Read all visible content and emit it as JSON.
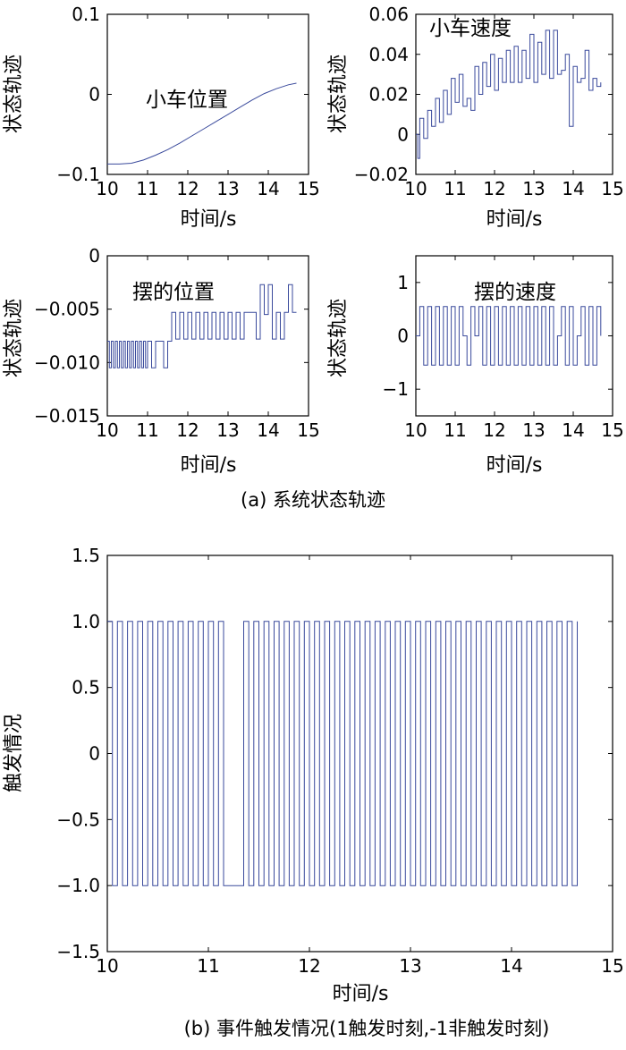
{
  "figure": {
    "caption_a": "(a) 系统状态轨迹",
    "caption_b": "(b) 事件触发情况(1触发时刻,-1非触发时刻)"
  },
  "chart_data": [
    {
      "id": "p1",
      "type": "line",
      "annotation": "小车位置",
      "xlabel": "时间/s",
      "ylabel": "状态轨迹",
      "xlim": [
        10,
        15
      ],
      "ylim": [
        -0.1,
        0.1
      ],
      "xticks": [
        10,
        11,
        12,
        13,
        14,
        15
      ],
      "yticks": [
        -0.1,
        0,
        0.1
      ],
      "ytick_labels": [
        "−0.1",
        "0",
        "0.1"
      ],
      "series": [
        {
          "x": [
            10.0,
            10.3,
            10.6,
            10.9,
            11.2,
            11.5,
            11.8,
            12.1,
            12.4,
            12.7,
            13.0,
            13.3,
            13.6,
            13.9,
            14.2,
            14.5,
            14.7
          ],
          "y": [
            -0.087,
            -0.087,
            -0.086,
            -0.082,
            -0.076,
            -0.069,
            -0.061,
            -0.052,
            -0.043,
            -0.034,
            -0.025,
            -0.016,
            -0.007,
            0.001,
            0.007,
            0.012,
            0.014
          ]
        }
      ]
    },
    {
      "id": "p2",
      "type": "line",
      "annotation": "小车速度",
      "xlabel": "时间/s",
      "ylabel": "状态轨迹",
      "xlim": [
        10,
        15
      ],
      "ylim": [
        -0.02,
        0.06
      ],
      "xticks": [
        10,
        11,
        12,
        13,
        14,
        15
      ],
      "yticks": [
        -0.02,
        0,
        0.02,
        0.04,
        0.06
      ],
      "ytick_labels": [
        "−0.02",
        "0",
        "0.02",
        "0.04",
        "0.06"
      ],
      "series": [
        {
          "x": [
            10.0,
            10.05,
            10.1,
            10.2,
            10.3,
            10.4,
            10.5,
            10.6,
            10.7,
            10.8,
            10.9,
            11.0,
            11.1,
            11.2,
            11.3,
            11.4,
            11.5,
            11.6,
            11.7,
            11.8,
            11.9,
            12.0,
            12.1,
            12.2,
            12.3,
            12.4,
            12.5,
            12.6,
            12.7,
            12.8,
            12.9,
            13.0,
            13.1,
            13.2,
            13.3,
            13.4,
            13.5,
            13.6,
            13.7,
            13.8,
            13.9,
            14.0,
            14.1,
            14.2,
            14.3,
            14.4,
            14.5,
            14.6,
            14.7
          ],
          "y": [
            0.0,
            -0.012,
            0.008,
            -0.002,
            0.012,
            0.004,
            0.018,
            0.006,
            0.022,
            0.01,
            0.028,
            0.016,
            0.03,
            0.014,
            0.018,
            0.012,
            0.034,
            0.02,
            0.036,
            0.024,
            0.04,
            0.022,
            0.038,
            0.026,
            0.042,
            0.026,
            0.044,
            0.026,
            0.042,
            0.028,
            0.05,
            0.026,
            0.046,
            0.03,
            0.052,
            0.028,
            0.052,
            0.03,
            0.032,
            0.04,
            0.004,
            0.034,
            0.026,
            0.028,
            0.042,
            0.022,
            0.028,
            0.024,
            0.026
          ]
        }
      ]
    },
    {
      "id": "p3",
      "type": "line",
      "annotation": "摆的位置",
      "xlabel": "时间/s",
      "ylabel": "状态轨迹",
      "xlim": [
        10,
        15
      ],
      "ylim": [
        -0.015,
        0
      ],
      "xticks": [
        10,
        11,
        12,
        13,
        14,
        15
      ],
      "yticks": [
        -0.015,
        -0.01,
        -0.005,
        0
      ],
      "ytick_labels": [
        "−0.015",
        "−0.010",
        "−0.005",
        "0"
      ],
      "series": [
        {
          "x": [
            10.0,
            10.05,
            10.1,
            10.15,
            10.2,
            10.25,
            10.3,
            10.35,
            10.4,
            10.45,
            10.5,
            10.55,
            10.6,
            10.65,
            10.7,
            10.75,
            10.8,
            10.85,
            10.9,
            10.95,
            11.0,
            11.1,
            11.2,
            11.3,
            11.4,
            11.5,
            11.6,
            11.7,
            11.8,
            11.9,
            12.0,
            12.1,
            12.2,
            12.3,
            12.4,
            12.5,
            12.6,
            12.7,
            12.8,
            12.9,
            13.0,
            13.1,
            13.2,
            13.3,
            13.4,
            13.5,
            13.6,
            13.7,
            13.8,
            13.9,
            14.0,
            14.1,
            14.2,
            14.3,
            14.4,
            14.5,
            14.6,
            14.7
          ],
          "y": [
            -0.008,
            -0.0105,
            -0.008,
            -0.0105,
            -0.008,
            -0.0105,
            -0.008,
            -0.0105,
            -0.008,
            -0.0105,
            -0.008,
            -0.0105,
            -0.008,
            -0.0105,
            -0.008,
            -0.0105,
            -0.008,
            -0.0105,
            -0.008,
            -0.0105,
            -0.008,
            -0.0105,
            -0.008,
            -0.008,
            -0.0105,
            -0.008,
            -0.0053,
            -0.0078,
            -0.0053,
            -0.0078,
            -0.0053,
            -0.0078,
            -0.0053,
            -0.0078,
            -0.0053,
            -0.0078,
            -0.0053,
            -0.0078,
            -0.0053,
            -0.0078,
            -0.0053,
            -0.0078,
            -0.0053,
            -0.0078,
            -0.0053,
            -0.0053,
            -0.0053,
            -0.0078,
            -0.0027,
            -0.0055,
            -0.0027,
            -0.0078,
            -0.0053,
            -0.0078,
            -0.0053,
            -0.0027,
            -0.0053,
            -0.0053
          ]
        }
      ]
    },
    {
      "id": "p4",
      "type": "line",
      "annotation": "摆的速度",
      "xlabel": "时间/s",
      "ylabel": "状态轨迹",
      "xlim": [
        10,
        15
      ],
      "ylim": [
        -1.5,
        1.5
      ],
      "xticks": [
        10,
        11,
        12,
        13,
        14,
        15
      ],
      "yticks": [
        -1,
        0,
        1
      ],
      "ytick_labels": [
        "−1",
        "0",
        "1"
      ],
      "series": [
        {
          "x": [
            10.0,
            10.1,
            10.2,
            10.3,
            10.4,
            10.5,
            10.6,
            10.7,
            10.8,
            10.9,
            11.0,
            11.1,
            11.2,
            11.3,
            11.4,
            11.5,
            11.6,
            11.7,
            11.8,
            11.9,
            12.0,
            12.1,
            12.2,
            12.3,
            12.4,
            12.5,
            12.6,
            12.7,
            12.8,
            12.9,
            13.0,
            13.1,
            13.2,
            13.3,
            13.4,
            13.5,
            13.6,
            13.7,
            13.8,
            13.9,
            14.0,
            14.1,
            14.2,
            14.3,
            14.4,
            14.5,
            14.6,
            14.7
          ],
          "y": [
            0,
            0.55,
            -0.55,
            0.55,
            -0.55,
            0.55,
            -0.55,
            0.55,
            -0.55,
            0.55,
            -0.55,
            0.55,
            0,
            -0.55,
            0.55,
            0,
            0.55,
            -0.55,
            0.55,
            -0.55,
            0.55,
            -0.55,
            0.55,
            -0.55,
            0.55,
            -0.55,
            0.55,
            -0.55,
            0.55,
            -0.55,
            0.55,
            -0.55,
            0.55,
            -0.55,
            0.55,
            -0.55,
            0,
            0.55,
            -0.55,
            0.55,
            -0.55,
            0,
            0.55,
            -0.55,
            0.55,
            -0.55,
            0.55,
            0
          ]
        }
      ]
    },
    {
      "id": "p5",
      "type": "line",
      "xlabel": "时间/s",
      "ylabel": "触发情况",
      "xlim": [
        10,
        15
      ],
      "ylim": [
        -1.5,
        1.5
      ],
      "xticks": [
        10,
        11,
        12,
        13,
        14,
        15
      ],
      "yticks": [
        -1.5,
        -1.0,
        -0.5,
        0,
        0.5,
        1.0,
        1.5
      ],
      "ytick_labels": [
        "−1.5",
        "−1.0",
        "−0.5",
        "0",
        "0.5",
        "1.0",
        "1.5"
      ],
      "series": [
        {
          "x": [
            10.0,
            10.05,
            10.1,
            10.15,
            10.2,
            10.25,
            10.3,
            10.35,
            10.4,
            10.45,
            10.5,
            10.55,
            10.6,
            10.65,
            10.7,
            10.75,
            10.8,
            10.85,
            10.9,
            10.95,
            11.0,
            11.05,
            11.1,
            11.15,
            11.2,
            11.3,
            11.35,
            11.4,
            11.45,
            11.5,
            11.55,
            11.6,
            11.65,
            11.7,
            11.75,
            11.8,
            11.85,
            11.9,
            11.95,
            12.0,
            12.05,
            12.1,
            12.15,
            12.2,
            12.25,
            12.3,
            12.35,
            12.4,
            12.45,
            12.5,
            12.55,
            12.6,
            12.65,
            12.7,
            12.75,
            12.8,
            12.85,
            12.9,
            12.95,
            13.0,
            13.05,
            13.1,
            13.15,
            13.2,
            13.25,
            13.3,
            13.35,
            13.4,
            13.45,
            13.5,
            13.55,
            13.6,
            13.65,
            13.7,
            13.75,
            13.8,
            13.85,
            13.9,
            13.95,
            14.0,
            14.05,
            14.1,
            14.15,
            14.2,
            14.25,
            14.3,
            14.35,
            14.4,
            14.45,
            14.5,
            14.55,
            14.6,
            14.65
          ],
          "y": [
            1,
            -1,
            1,
            -1,
            1,
            -1,
            1,
            -1,
            1,
            -1,
            1,
            -1,
            1,
            -1,
            1,
            -1,
            1,
            -1,
            1,
            -1,
            1,
            -1,
            1,
            -1,
            -1,
            -1,
            1,
            -1,
            1,
            -1,
            1,
            -1,
            1,
            -1,
            1,
            -1,
            1,
            -1,
            1,
            -1,
            1,
            -1,
            1,
            -1,
            1,
            -1,
            1,
            -1,
            1,
            -1,
            1,
            -1,
            1,
            -1,
            1,
            -1,
            1,
            -1,
            1,
            -1,
            1,
            -1,
            1,
            -1,
            1,
            -1,
            1,
            -1,
            1,
            -1,
            1,
            -1,
            1,
            -1,
            1,
            -1,
            1,
            -1,
            1,
            -1,
            1,
            -1,
            1,
            -1,
            1,
            -1,
            1,
            -1,
            1,
            -1,
            1,
            -1,
            1
          ]
        }
      ]
    }
  ]
}
